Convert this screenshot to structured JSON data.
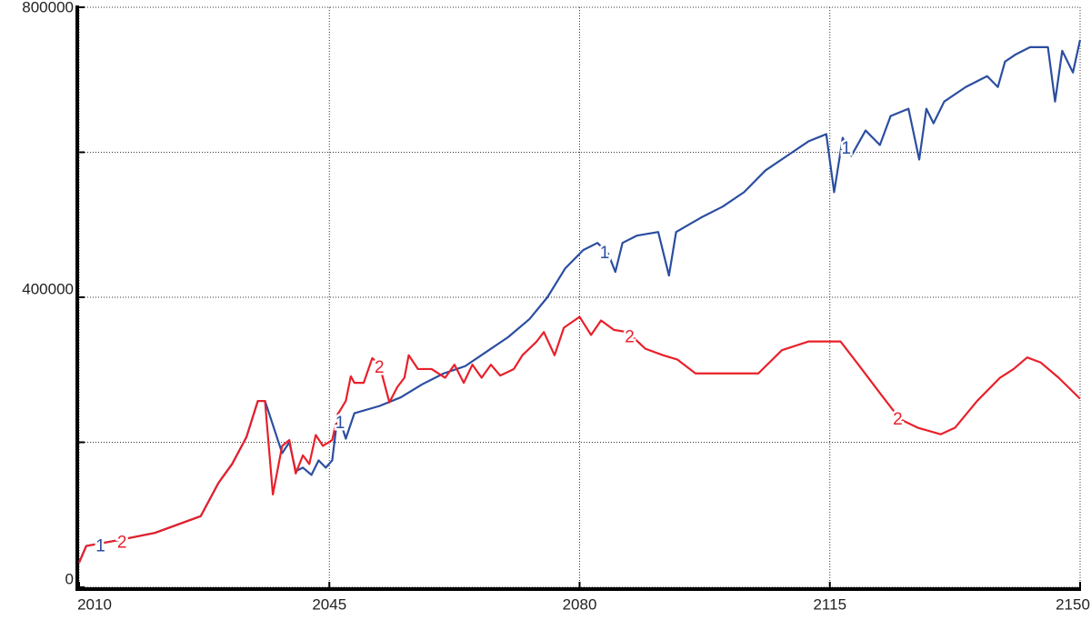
{
  "chart_data": {
    "type": "line",
    "xlim": [
      2010,
      2150
    ],
    "xticks": [
      2010,
      2045,
      2080,
      2115,
      2150
    ],
    "ylim": [
      0,
      800000
    ],
    "yticks": [
      0,
      {
        "value": 200000,
        "label": null
      },
      400000,
      {
        "value": 600000,
        "label": null
      },
      800000
    ],
    "grid": true,
    "series": [
      {
        "name": "1",
        "color": "#2b4ea0",
        "x": [
          2010,
          2011,
          2015.5,
          2020.6,
          2027,
          2029.5,
          2031.4,
          2033.4,
          2035,
          2036,
          2038.4,
          2039.4,
          2040.3,
          2041.3,
          2042.5,
          2043.5,
          2044.5,
          2045.4,
          2046.2,
          2047.3,
          2048.5,
          2052,
          2055,
          2058,
          2061,
          2064,
          2067,
          2070,
          2073,
          2075.5,
          2078,
          2080.5,
          2082.5,
          2084,
          2085,
          2086,
          2088,
          2091,
          2092.5,
          2093.5,
          2097,
          2100,
          2103,
          2106,
          2109,
          2112,
          2114.5,
          2115.6,
          2116.8,
          2118,
          2120,
          2122,
          2123.5,
          2126,
          2127.5,
          2128.5,
          2129.5,
          2131,
          2134,
          2137,
          2138.5,
          2139.5,
          2141,
          2143,
          2145.5,
          2146.5,
          2147.5,
          2149,
          2150
        ],
        "values": [
          34000,
          57000,
          65000,
          75000,
          98000,
          144000,
          170000,
          207000,
          257000,
          257000,
          185000,
          200000,
          160000,
          165000,
          155000,
          175000,
          165000,
          175000,
          240000,
          205000,
          240000,
          250000,
          262000,
          280000,
          295000,
          305000,
          325000,
          345000,
          370000,
          400000,
          440000,
          465000,
          475000,
          460000,
          435000,
          475000,
          485000,
          490000,
          430000,
          490000,
          510000,
          525000,
          545000,
          575000,
          595000,
          615000,
          625000,
          545000,
          620000,
          595000,
          630000,
          610000,
          650000,
          660000,
          590000,
          660000,
          640000,
          670000,
          690000,
          705000,
          690000,
          725000,
          735000,
          745000,
          745000,
          670000,
          740000,
          710000,
          755000
        ]
      },
      {
        "name": "2",
        "color": "#e8202a",
        "x": [
          2010,
          2011,
          2015.5,
          2020.6,
          2027,
          2029.5,
          2031.4,
          2033.4,
          2035,
          2036,
          2037.1,
          2038.4,
          2039.4,
          2040.3,
          2041.3,
          2042.2,
          2043.1,
          2044.1,
          2045.4,
          2046.2,
          2047.3,
          2048,
          2048.5,
          2049.8,
          2051,
          2052,
          2053.4,
          2054.5,
          2055.5,
          2056.1,
          2057.4,
          2059.3,
          2061.2,
          2062.5,
          2063.8,
          2065,
          2066.3,
          2067.6,
          2068.9,
          2070.8,
          2072,
          2074,
          2075,
          2076.5,
          2077.8,
          2080,
          2081.6,
          2083,
          2084.8,
          2086.7,
          2089.2,
          2091.7,
          2093.7,
          2096.2,
          2100.6,
          2105,
          2108.3,
          2112,
          2116.5,
          2119,
          2122.3,
          2124.8,
          2127.3,
          2130.5,
          2132.5,
          2135.6,
          2138.8,
          2140.7,
          2142.6,
          2144.5,
          2147,
          2150
        ],
        "values": [
          34000,
          57000,
          65000,
          75000,
          98000,
          144000,
          170000,
          207000,
          257000,
          257000,
          128000,
          195000,
          203000,
          157000,
          182000,
          170000,
          210000,
          195000,
          203000,
          239000,
          257000,
          291000,
          282000,
          282000,
          316000,
          307000,
          255000,
          276000,
          289000,
          320000,
          301000,
          301000,
          289000,
          307000,
          282000,
          307000,
          289000,
          307000,
          292000,
          301000,
          320000,
          339000,
          352000,
          320000,
          358000,
          373000,
          348000,
          368000,
          355000,
          352000,
          329000,
          320000,
          314000,
          295000,
          295000,
          295000,
          327000,
          339000,
          339000,
          307000,
          264000,
          232000,
          220000,
          211000,
          220000,
          257000,
          289000,
          301000,
          317000,
          310000,
          289000,
          260000
        ]
      }
    ]
  }
}
